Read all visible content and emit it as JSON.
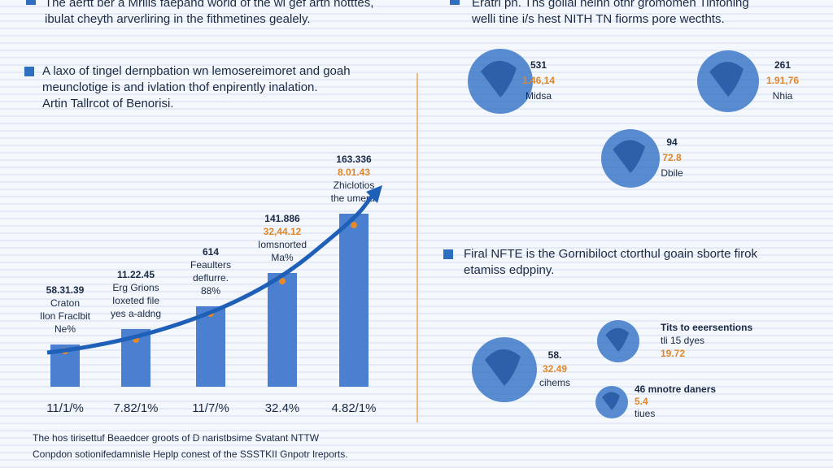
{
  "left_header": {
    "lines": [
      "The aertt ber a Mrilis faepand world of the wi gef artn notttes,",
      "ibulat cheyth arverliring in the fithmetines gealely."
    ]
  },
  "right_header": {
    "lines": [
      "Eratri pn. Ths golial nelhn othr gromomen Tinfoning",
      "welli tine i/s hest NITH TN fiorms pore wecthts."
    ]
  },
  "left_section": {
    "heading": [
      "A laxo of tingel dernpbation wn lemosereimoret and goah",
      "meunclotige is and ivlation thof enpirently inalation.",
      "Artin Tallrcot of Benorisi."
    ]
  },
  "bar_chart": {
    "bars": [
      {
        "labels": [
          "58.31.39",
          "Craton",
          "Ilon Fraclbit",
          "Ne%"
        ],
        "x_label": "11/1/%"
      },
      {
        "labels": [
          "11.22.45",
          "Erg Grions",
          "Ioxeted file",
          "yes a-aldng"
        ],
        "x_label": "7.82/1%"
      },
      {
        "labels": [
          "614",
          "Feaulters",
          "deflurre.",
          "88%"
        ],
        "x_label": "11/7/%"
      },
      {
        "labels": [
          "141.886",
          "32,44.12",
          "Iomsnorted",
          "Ma%"
        ],
        "x_label": "32.4%"
      },
      {
        "labels": [
          "163.336",
          "8.01.43",
          "Zhiclotios",
          "the umeral"
        ],
        "x_label": "4.82/1%"
      }
    ]
  },
  "globes_top": [
    {
      "lines": [
        "531",
        "1.46,14",
        "Midsa"
      ]
    },
    {
      "lines": [
        "261",
        "1.91,76",
        "Nhia"
      ]
    },
    {
      "lines": [
        "94",
        "72.8",
        "Dbile"
      ]
    }
  ],
  "right_section": {
    "heading": [
      "Firal NFTE is the Gornibiloct ctorthul goain sborte firok",
      "etamiss edppiny."
    ]
  },
  "globes_bottom": [
    {
      "lines": [
        "58.",
        "32.49",
        "cihems"
      ]
    },
    {
      "lines": [
        "Tits to eeersentions",
        "tli 15 dyes",
        "19.72"
      ]
    },
    {
      "lines": [
        "46 mnotre daners",
        "5.4",
        "tiues"
      ]
    }
  ],
  "footer": {
    "lines": [
      "The hos tirisettuf Beaedcer groots of D naristbsime Svatant NTTW",
      "Conpdon sotionifedamnisle Heplp conest of the SSSTKII Gnpotr lreports."
    ]
  }
}
